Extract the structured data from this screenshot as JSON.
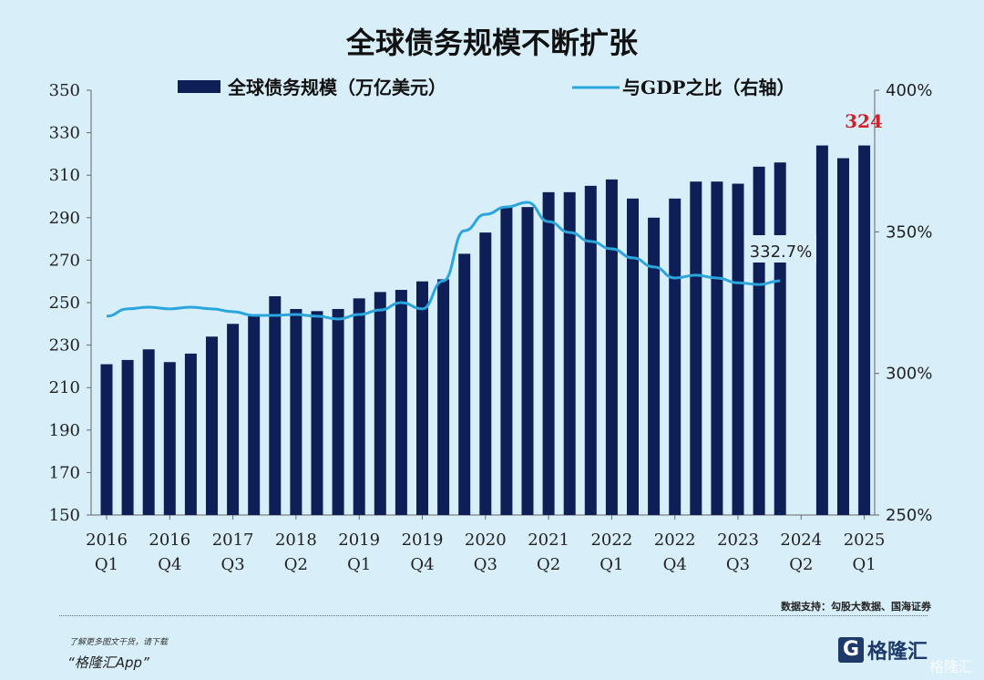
{
  "chart_data": {
    "type": "bar",
    "title": "全球债务规模不断扩张",
    "categories": [
      "2016Q1",
      "2016Q2",
      "2016Q3",
      "2016Q4",
      "2017Q1",
      "2017Q2",
      "2017Q3",
      "2017Q4",
      "2018Q1",
      "2018Q2",
      "2018Q3",
      "2018Q4",
      "2019Q1",
      "2019Q2",
      "2019Q3",
      "2019Q4",
      "2020Q1",
      "2020Q2",
      "2020Q3",
      "2020Q4",
      "2021Q1",
      "2021Q2",
      "2021Q3",
      "2021Q4",
      "2022Q1",
      "2022Q2",
      "2022Q3",
      "2022Q4",
      "2023Q1",
      "2023Q2",
      "2023Q3",
      "2023Q4",
      "2024Q1",
      "2024Q2",
      "2024Q3",
      "2024Q4",
      "2025Q1"
    ],
    "tick_labels": [
      [
        "2016",
        "Q1"
      ],
      [
        "2016",
        "Q4"
      ],
      [
        "2017",
        "Q3"
      ],
      [
        "2018",
        "Q2"
      ],
      [
        "2019",
        "Q1"
      ],
      [
        "2019",
        "Q4"
      ],
      [
        "2020",
        "Q3"
      ],
      [
        "2021",
        "Q2"
      ],
      [
        "2022",
        "Q1"
      ],
      [
        "2022",
        "Q4"
      ],
      [
        "2023",
        "Q3"
      ],
      [
        "2024",
        "Q2"
      ],
      [
        "2025",
        "Q1"
      ]
    ],
    "series": [
      {
        "name": "全球债务规模（万亿美元）",
        "type": "bar",
        "axis": "left",
        "color": "#0d1f56",
        "values": [
          221,
          223,
          228,
          222,
          226,
          234,
          240,
          244,
          253,
          247,
          246,
          247,
          252,
          255,
          256,
          260,
          261,
          273,
          283,
          295,
          295,
          302,
          302,
          305,
          308,
          299,
          290,
          299,
          307,
          307,
          306,
          314,
          316,
          null,
          324,
          318,
          324
        ]
      },
      {
        "name": "与GDP之比（右轴）",
        "type": "line",
        "axis": "right",
        "color": "#2aa6dc",
        "values": [
          320.2,
          322.8,
          323.4,
          322.8,
          323.4,
          322.8,
          321.8,
          320.5,
          320.5,
          320.8,
          320.2,
          319.2,
          320.8,
          322.4,
          325,
          322.8,
          332.7,
          350.4,
          356.2,
          358.8,
          360.4,
          353.6,
          349.8,
          346.6,
          344,
          340.8,
          337.6,
          333.7,
          334.7,
          333.7,
          332,
          331.4,
          332.7,
          null,
          null,
          null,
          null
        ]
      }
    ],
    "left_axis": {
      "ylim": [
        150,
        350
      ],
      "ticks": [
        150,
        170,
        190,
        210,
        230,
        250,
        270,
        290,
        310,
        330,
        350
      ]
    },
    "right_axis": {
      "ylim": [
        250,
        400
      ],
      "ticks": [
        "250%",
        "300%",
        "350%",
        "400%"
      ]
    },
    "annotations": {
      "last_bar": "324",
      "last_ratio": "332.7%"
    },
    "legend_placement": "top",
    "grid": false
  },
  "footer": {
    "source": "数据支持：勾股大数据、国海证券",
    "promo_line1": "了解更多图文干货，请下载",
    "promo_line2": "“格隆汇App”",
    "logo_text": "格隆汇",
    "watermark": "格隆汇"
  }
}
